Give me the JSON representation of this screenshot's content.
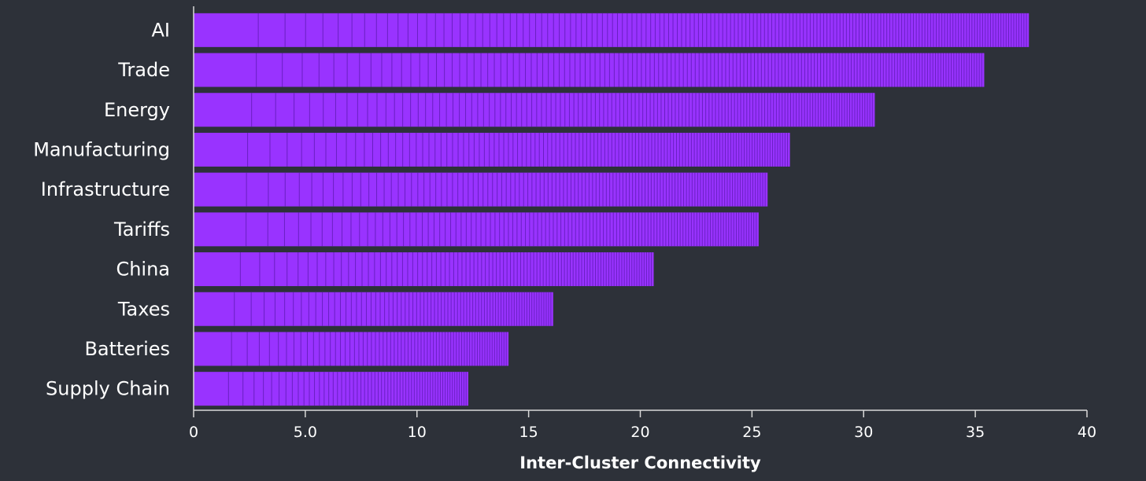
{
  "chart_data": {
    "type": "bar",
    "orientation": "horizontal",
    "categories": [
      "AI",
      "Trade",
      "Energy",
      "Manufacturing",
      "Infrastructure",
      "Tariffs",
      "China",
      "Taxes",
      "Batteries",
      "Supply Chain"
    ],
    "values": [
      37.4,
      35.4,
      30.5,
      26.7,
      25.7,
      25.3,
      20.6,
      16.1,
      14.1,
      12.3
    ],
    "xlabel": "Inter-Cluster Connectivity",
    "ylabel": "",
    "xlim": [
      0,
      40
    ],
    "xticks": [
      0,
      5,
      10,
      15,
      20,
      25,
      30,
      35,
      40
    ],
    "xtick_labels": [
      "0",
      "5.0",
      "10",
      "15",
      "20",
      "25",
      "30",
      "35",
      "40"
    ],
    "grid": false,
    "colors": {
      "bar": "#9933ff",
      "bar_stroke": "#6a1fc2",
      "background": "#2d3139",
      "axis": "#d9d9d9",
      "text": "#ffffff"
    }
  }
}
